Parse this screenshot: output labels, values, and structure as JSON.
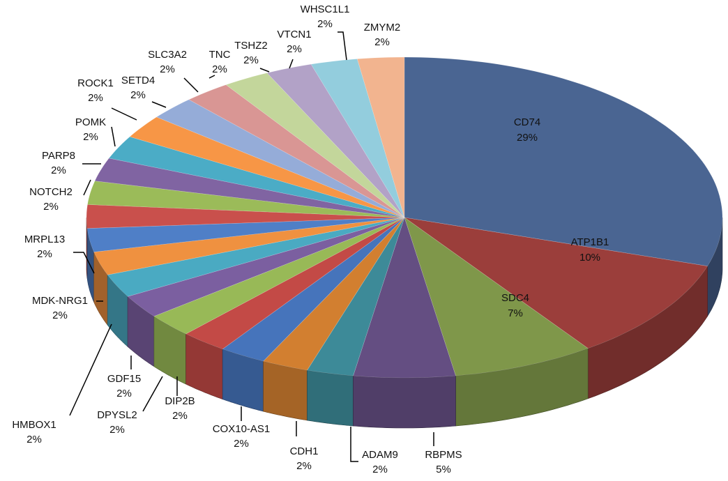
{
  "chart_data": {
    "type": "pie",
    "style": "3d-exploded-none",
    "slices": [
      {
        "name": "CD74",
        "label": "CD74",
        "value_label": "29%",
        "value": 29,
        "color": "#4a6592"
      },
      {
        "name": "ATP1B1",
        "label": "ATP1B1",
        "value_label": "10%",
        "value": 10,
        "color": "#9b3e3b"
      },
      {
        "name": "SDC4",
        "label": "SDC4",
        "value_label": "7%",
        "value": 7,
        "color": "#7f974a"
      },
      {
        "name": "RBPMS",
        "label": "RBPMS",
        "value_label": "5%",
        "value": 5,
        "color": "#644e82"
      },
      {
        "name": "ADAM9",
        "label": "ADAM9",
        "value_label": "2%",
        "value": 2.3,
        "color": "#3d8a98"
      },
      {
        "name": "CDH1",
        "label": "CDH1",
        "value_label": "2%",
        "value": 2.3,
        "color": "#d27f30"
      },
      {
        "name": "COX10-AS1",
        "label": "COX10-AS1",
        "value_label": "2%",
        "value": 2.3,
        "color": "#4674bb"
      },
      {
        "name": "DIP2B",
        "label": "DIP2B",
        "value_label": "2%",
        "value": 2.3,
        "color": "#c34a46"
      },
      {
        "name": "DPYSL2",
        "label": "DPYSL2",
        "value_label": "2%",
        "value": 2.3,
        "color": "#98b957"
      },
      {
        "name": "GDF15",
        "label": "GDF15",
        "value_label": "2%",
        "value": 2.3,
        "color": "#7b5fa0"
      },
      {
        "name": "HMBOX1",
        "label": "HMBOX1",
        "value_label": "2%",
        "value": 2.3,
        "color": "#4aaac2"
      },
      {
        "name": "MDK-NRG1",
        "label": "MDK-NRG1",
        "value_label": "2%",
        "value": 2.3,
        "color": "#ef9140"
      },
      {
        "name": "MRPL13",
        "label": "MRPL13",
        "value_label": "2%",
        "value": 2.3,
        "color": "#4f7fc7"
      },
      {
        "name": "NOTCH2",
        "label": "NOTCH2",
        "value_label": "2%",
        "value": 2.3,
        "color": "#c9504c"
      },
      {
        "name": "PARP8",
        "label": "PARP8",
        "value_label": "2%",
        "value": 2.3,
        "color": "#9bbb59"
      },
      {
        "name": "POMK",
        "label": "POMK",
        "value_label": "2%",
        "value": 2.3,
        "color": "#8064a2"
      },
      {
        "name": "ROCK1",
        "label": "ROCK1",
        "value_label": "2%",
        "value": 2.3,
        "color": "#4bacc6"
      },
      {
        "name": "SETD4",
        "label": "SETD4",
        "value_label": "2%",
        "value": 2.3,
        "color": "#f79646"
      },
      {
        "name": "SLC3A2",
        "label": "SLC3A2",
        "value_label": "2%",
        "value": 2.3,
        "color": "#95acd8"
      },
      {
        "name": "TNC",
        "label": "TNC",
        "value_label": "2%",
        "value": 2.3,
        "color": "#d99694"
      },
      {
        "name": "TSHZ2",
        "label": "TSHZ2",
        "value_label": "2%",
        "value": 2.3,
        "color": "#c3d69b"
      },
      {
        "name": "VTCN1",
        "label": "VTCN1",
        "value_label": "2%",
        "value": 2.3,
        "color": "#b2a2c7"
      },
      {
        "name": "WHSC1L1",
        "label": "WHSC1L1",
        "value_label": "2%",
        "value": 2.3,
        "color": "#93cddd"
      },
      {
        "name": "ZMYM2",
        "label": "ZMYM2",
        "value_label": "2%",
        "value": 2.3,
        "color": "#f2b48f"
      }
    ]
  }
}
